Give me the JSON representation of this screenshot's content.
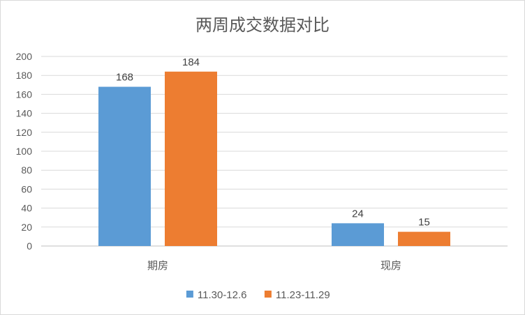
{
  "chart_data": {
    "type": "bar",
    "title": "两周成交数据对比",
    "categories": [
      "期房",
      "现房"
    ],
    "series": [
      {
        "name": "11.30-12.6",
        "values": [
          168,
          24
        ],
        "color": "#5b9bd5"
      },
      {
        "name": "11.23-11.29",
        "values": [
          184,
          15
        ],
        "color": "#ed7d31"
      }
    ],
    "ylim": [
      0,
      200
    ],
    "yticks": [
      0,
      20,
      40,
      60,
      80,
      100,
      120,
      140,
      160,
      180,
      200
    ],
    "grid": true,
    "legend_position": "bottom"
  }
}
